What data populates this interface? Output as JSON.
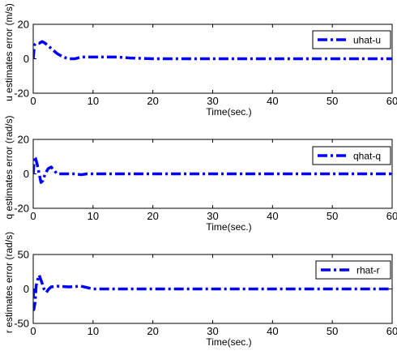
{
  "chart_data": [
    {
      "type": "line",
      "xlabel": "Time(sec.)",
      "ylabel": "u estimates error (m/s)",
      "xlim": [
        0,
        60
      ],
      "ylim": [
        -20,
        20
      ],
      "xticks": [
        "0",
        "10",
        "20",
        "30",
        "40",
        "50",
        "60"
      ],
      "yticks": [
        "-20",
        "0",
        "20"
      ],
      "grid": false,
      "legend_position": "top-right",
      "color": "#0000ff",
      "series": [
        {
          "name": "uhat-u",
          "x": [
            0,
            0.2,
            0.5,
            1,
            1.5,
            2,
            3,
            4,
            5,
            6,
            7,
            8,
            10,
            12,
            14,
            16,
            20,
            30,
            40,
            50,
            60
          ],
          "y": [
            0,
            8,
            9,
            9,
            10,
            9,
            6,
            3,
            1,
            0,
            0,
            1,
            1,
            1,
            1,
            0.5,
            0,
            0,
            0,
            0,
            0
          ]
        }
      ]
    },
    {
      "type": "line",
      "xlabel": "Time(sec.)",
      "ylabel": "q estimates error (rad/s)",
      "xlim": [
        0,
        60
      ],
      "ylim": [
        -20,
        20
      ],
      "xticks": [
        "0",
        "10",
        "20",
        "30",
        "40",
        "50",
        "60"
      ],
      "yticks": [
        "-20",
        "0",
        "20"
      ],
      "grid": false,
      "legend_position": "top-right",
      "color": "#0000ff",
      "series": [
        {
          "name": "qhat-q",
          "x": [
            0,
            0.2,
            0.4,
            0.7,
            1,
            1.3,
            1.6,
            2,
            2.5,
            3,
            3.5,
            4,
            5,
            7,
            8,
            9,
            10,
            20,
            30,
            40,
            50,
            60
          ],
          "y": [
            0,
            10,
            9,
            5,
            0,
            -5,
            -4,
            0,
            3,
            4,
            2,
            0,
            0,
            0,
            -0.5,
            0,
            0,
            0,
            0,
            0,
            0,
            0
          ]
        }
      ]
    },
    {
      "type": "line",
      "xlabel": "Time(sec.)",
      "ylabel": "r estimates error (rad/s)",
      "xlim": [
        0,
        60
      ],
      "ylim": [
        -50,
        50
      ],
      "xticks": [
        "0",
        "10",
        "20",
        "30",
        "40",
        "50",
        "60"
      ],
      "yticks": [
        "-50",
        "0",
        "50"
      ],
      "grid": false,
      "legend_position": "top-right",
      "color": "#0000ff",
      "series": [
        {
          "name": "rhat-r",
          "x": [
            0,
            0.1,
            0.3,
            0.5,
            0.8,
            1,
            1.2,
            1.5,
            1.8,
            2.2,
            2.6,
            3,
            4,
            6,
            8,
            9,
            10,
            20,
            30,
            40,
            50,
            60
          ],
          "y": [
            0,
            -30,
            -20,
            5,
            15,
            20,
            15,
            8,
            0,
            -5,
            0,
            3,
            4,
            3,
            4,
            2,
            0,
            0,
            0,
            0,
            0,
            0
          ]
        }
      ]
    }
  ]
}
